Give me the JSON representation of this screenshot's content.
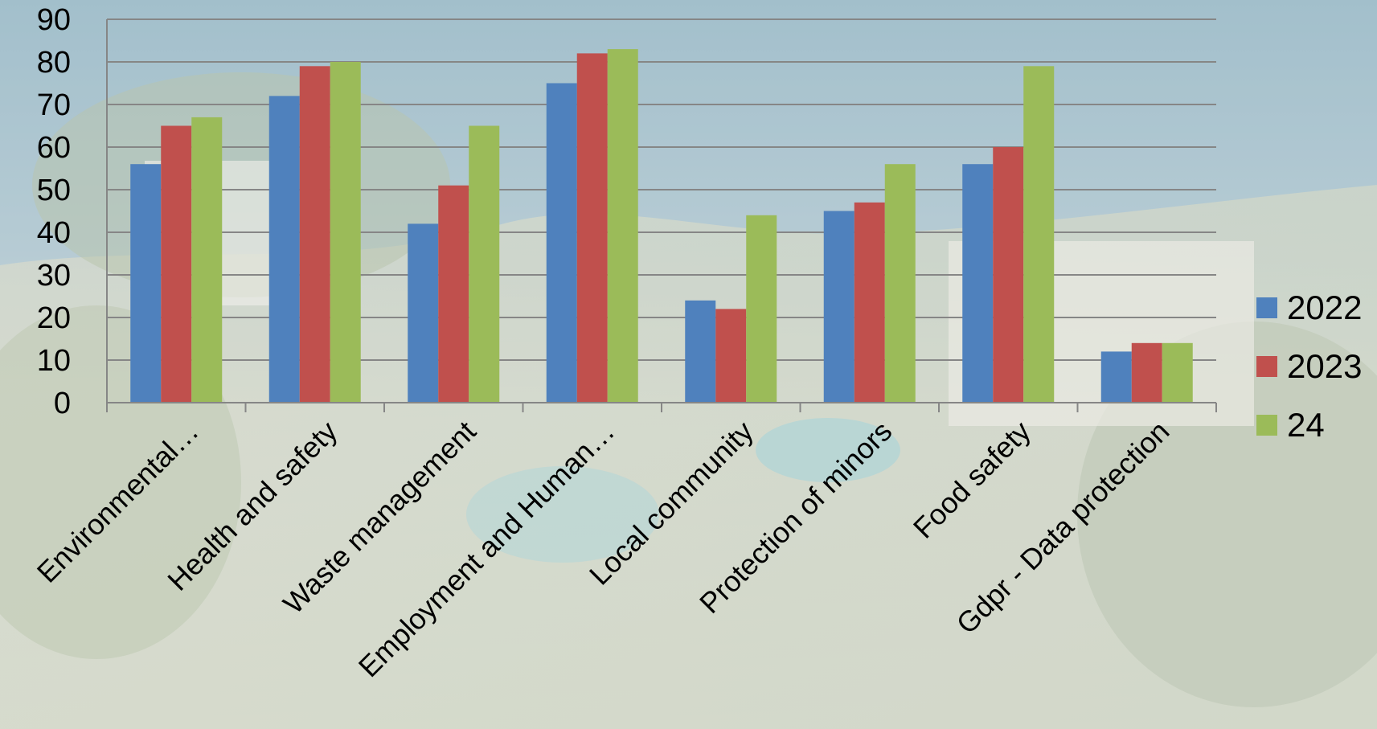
{
  "chart_data": {
    "type": "bar",
    "categories": [
      "Environmental…",
      "Health and safety",
      "Waste management",
      "Employment and Human…",
      "Local community",
      "Protection of minors",
      "Food safety",
      "Gdpr - Data protection"
    ],
    "series": [
      {
        "name": "2022",
        "color": "#4f81bd",
        "values": [
          56,
          72,
          42,
          75,
          24,
          45,
          56,
          12
        ]
      },
      {
        "name": "2023",
        "color": "#c0504d",
        "values": [
          65,
          79,
          51,
          82,
          22,
          47,
          60,
          14
        ]
      },
      {
        "name": "24",
        "color": "#9bbb59",
        "values": [
          67,
          80,
          65,
          83,
          44,
          56,
          79,
          14
        ]
      }
    ],
    "ylim": [
      0,
      90
    ],
    "yticks": [
      0,
      10,
      20,
      30,
      40,
      50,
      60,
      70,
      80,
      90
    ],
    "grid": true,
    "legend_position": "right"
  }
}
